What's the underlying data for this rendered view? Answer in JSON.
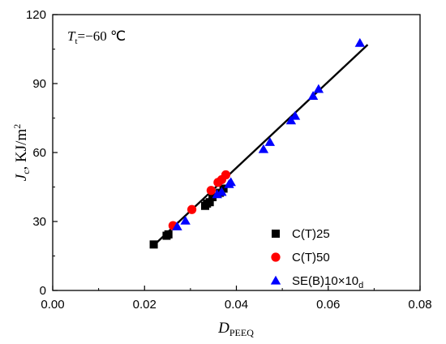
{
  "chart_data": {
    "type": "scatter",
    "annotation": {
      "var": "T",
      "sub": "t",
      "text": "=−60 ℃"
    },
    "xlabel": {
      "main": "D",
      "sub": "PEEQ"
    },
    "ylabel": {
      "main": "J",
      "sub": "c",
      "rest": ", KJ/m",
      "sup": "2"
    },
    "xlim": [
      0.0,
      0.08
    ],
    "ylim": [
      0,
      120
    ],
    "xticks": [
      "0.00",
      "0.02",
      "0.04",
      "0.06",
      "0.08"
    ],
    "yticks": [
      "0",
      "30",
      "60",
      "90",
      "120"
    ],
    "grid": false,
    "legend_position": "bottom-right",
    "series": [
      {
        "name": "C(T)25",
        "marker": "square",
        "color": "#000000",
        "points": [
          [
            0.022,
            20.0
          ],
          [
            0.0248,
            23.8
          ],
          [
            0.0252,
            24.4
          ],
          [
            0.0332,
            36.8
          ],
          [
            0.0336,
            37.8
          ],
          [
            0.0342,
            38.4
          ],
          [
            0.0348,
            40.6
          ],
          [
            0.0364,
            42.5
          ],
          [
            0.0372,
            44.3
          ]
        ]
      },
      {
        "name": "C(T)50",
        "marker": "circle",
        "color": "#ff0000",
        "points": [
          [
            0.0262,
            28.2
          ],
          [
            0.0303,
            35.2
          ],
          [
            0.0345,
            43.5
          ],
          [
            0.036,
            47.0
          ],
          [
            0.0368,
            48.2
          ],
          [
            0.0377,
            50.3
          ]
        ]
      },
      {
        "name": "SE(B)10×10",
        "name_sub": "d",
        "marker": "triangle",
        "color": "#0000ff",
        "points": [
          [
            0.0271,
            27.8
          ],
          [
            0.0289,
            30.3
          ],
          [
            0.0358,
            41.8
          ],
          [
            0.0368,
            42.8
          ],
          [
            0.0384,
            46.2
          ],
          [
            0.0388,
            47.1
          ],
          [
            0.0459,
            61.4
          ],
          [
            0.0473,
            64.5
          ],
          [
            0.0519,
            73.9
          ],
          [
            0.0528,
            75.9
          ],
          [
            0.0567,
            84.6
          ],
          [
            0.0579,
            87.6
          ],
          [
            0.0669,
            107.6
          ]
        ]
      }
    ],
    "fit_line": {
      "color": "#000000",
      "points": [
        [
          0.0222,
          20.0
        ],
        [
          0.0686,
          106.9
        ]
      ]
    }
  }
}
